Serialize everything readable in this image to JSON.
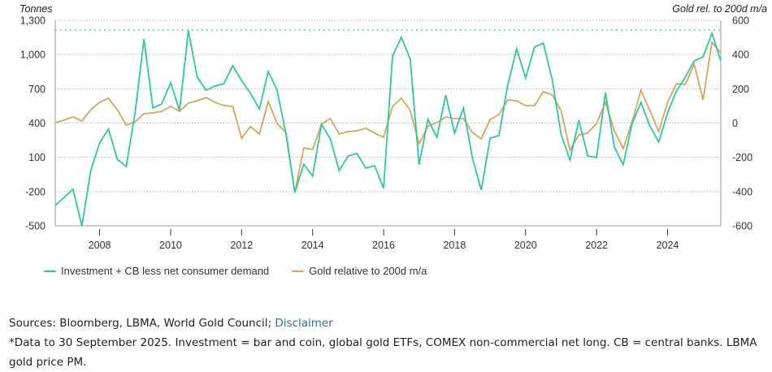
{
  "chart_data": {
    "type": "line",
    "title": "",
    "left_axis": {
      "label": "Tonnes",
      "ylim": [
        -500,
        1300
      ],
      "ticks": [
        "1,300",
        "1,000",
        "700",
        "400",
        "100",
        "-200",
        "-500"
      ],
      "tick_values": [
        1300,
        1000,
        700,
        400,
        100,
        -200,
        -500
      ]
    },
    "right_axis": {
      "label": "Gold rel. to 200d m/a",
      "ylim": [
        -600,
        600
      ],
      "ticks": [
        "600",
        "400",
        "200",
        "0",
        "-200",
        "-400",
        "-600"
      ],
      "tick_values": [
        600,
        400,
        200,
        0,
        -200,
        -400,
        -600
      ]
    },
    "x_axis": {
      "xlim": [
        2006.75,
        2025.5
      ],
      "ticks": [
        "2008",
        "2010",
        "2012",
        "2014",
        "2016",
        "2018",
        "2020",
        "2022",
        "2024"
      ],
      "tick_values": [
        2008,
        2010,
        2012,
        2014,
        2016,
        2018,
        2020,
        2022,
        2024
      ]
    },
    "grid": true,
    "reference_line": {
      "axis": "left",
      "value": 1215,
      "color": "#3dbf9a",
      "style": "dotted"
    },
    "x_start": 2006.75,
    "x_step": 0.25,
    "series": [
      {
        "name": "Investment + CB less net consumer demand",
        "axis": "left",
        "color": "#2ec99a",
        "values": [
          -322,
          -251,
          -180,
          -500,
          -16,
          226,
          347,
          83,
          19,
          496,
          1136,
          532,
          567,
          752,
          510,
          1208,
          802,
          688,
          724,
          745,
          902,
          773,
          660,
          524,
          852,
          688,
          304,
          -208,
          41,
          -66,
          389,
          261,
          -16,
          112,
          133,
          5,
          26,
          -173,
          987,
          1151,
          958,
          34,
          432,
          275,
          645,
          311,
          532,
          98,
          -187,
          268,
          290,
          738,
          1051,
          795,
          1065,
          1101,
          781,
          304,
          76,
          425,
          112,
          98,
          667,
          190,
          34,
          396,
          581,
          375,
          233,
          489,
          681,
          802,
          944,
          980,
          1186,
          944
        ]
      },
      {
        "name": "Gold relative to 200d m/a",
        "axis": "right",
        "color": "#d4a85a",
        "values": [
          2,
          17,
          36,
          12,
          78,
          121,
          145,
          78,
          -12,
          7,
          55,
          59,
          69,
          97,
          69,
          116,
          130,
          149,
          121,
          102,
          97,
          -88,
          -21,
          -64,
          126,
          -2,
          -55,
          -406,
          -145,
          -154,
          -7,
          26,
          -64,
          -50,
          -45,
          -31,
          -59,
          -83,
          97,
          145,
          74,
          -121,
          -17,
          2,
          36,
          26,
          26,
          -55,
          -92,
          21,
          50,
          135,
          130,
          102,
          102,
          183,
          164,
          74,
          -159,
          -69,
          -59,
          -2,
          121,
          -45,
          -149,
          7,
          192,
          74,
          -50,
          121,
          230,
          225,
          344,
          135,
          472,
          410
        ]
      }
    ],
    "legend": {
      "placement": "bottom-left"
    }
  },
  "legend": {
    "items": [
      {
        "label": "Investment + CB less net consumer demand",
        "color": "#2ec99a"
      },
      {
        "label": "Gold relative to 200d m/a",
        "color": "#d4a85a"
      }
    ]
  },
  "footer": {
    "sources_prefix": "Sources: Bloomberg, LBMA, World Gold Council; ",
    "disclaimer_link": "Disclaimer",
    "note": "*Data to 30 September 2025. Investment = bar and coin, global gold ETFs, COMEX non-commercial net long. CB = central banks. LBMA gold price PM."
  }
}
